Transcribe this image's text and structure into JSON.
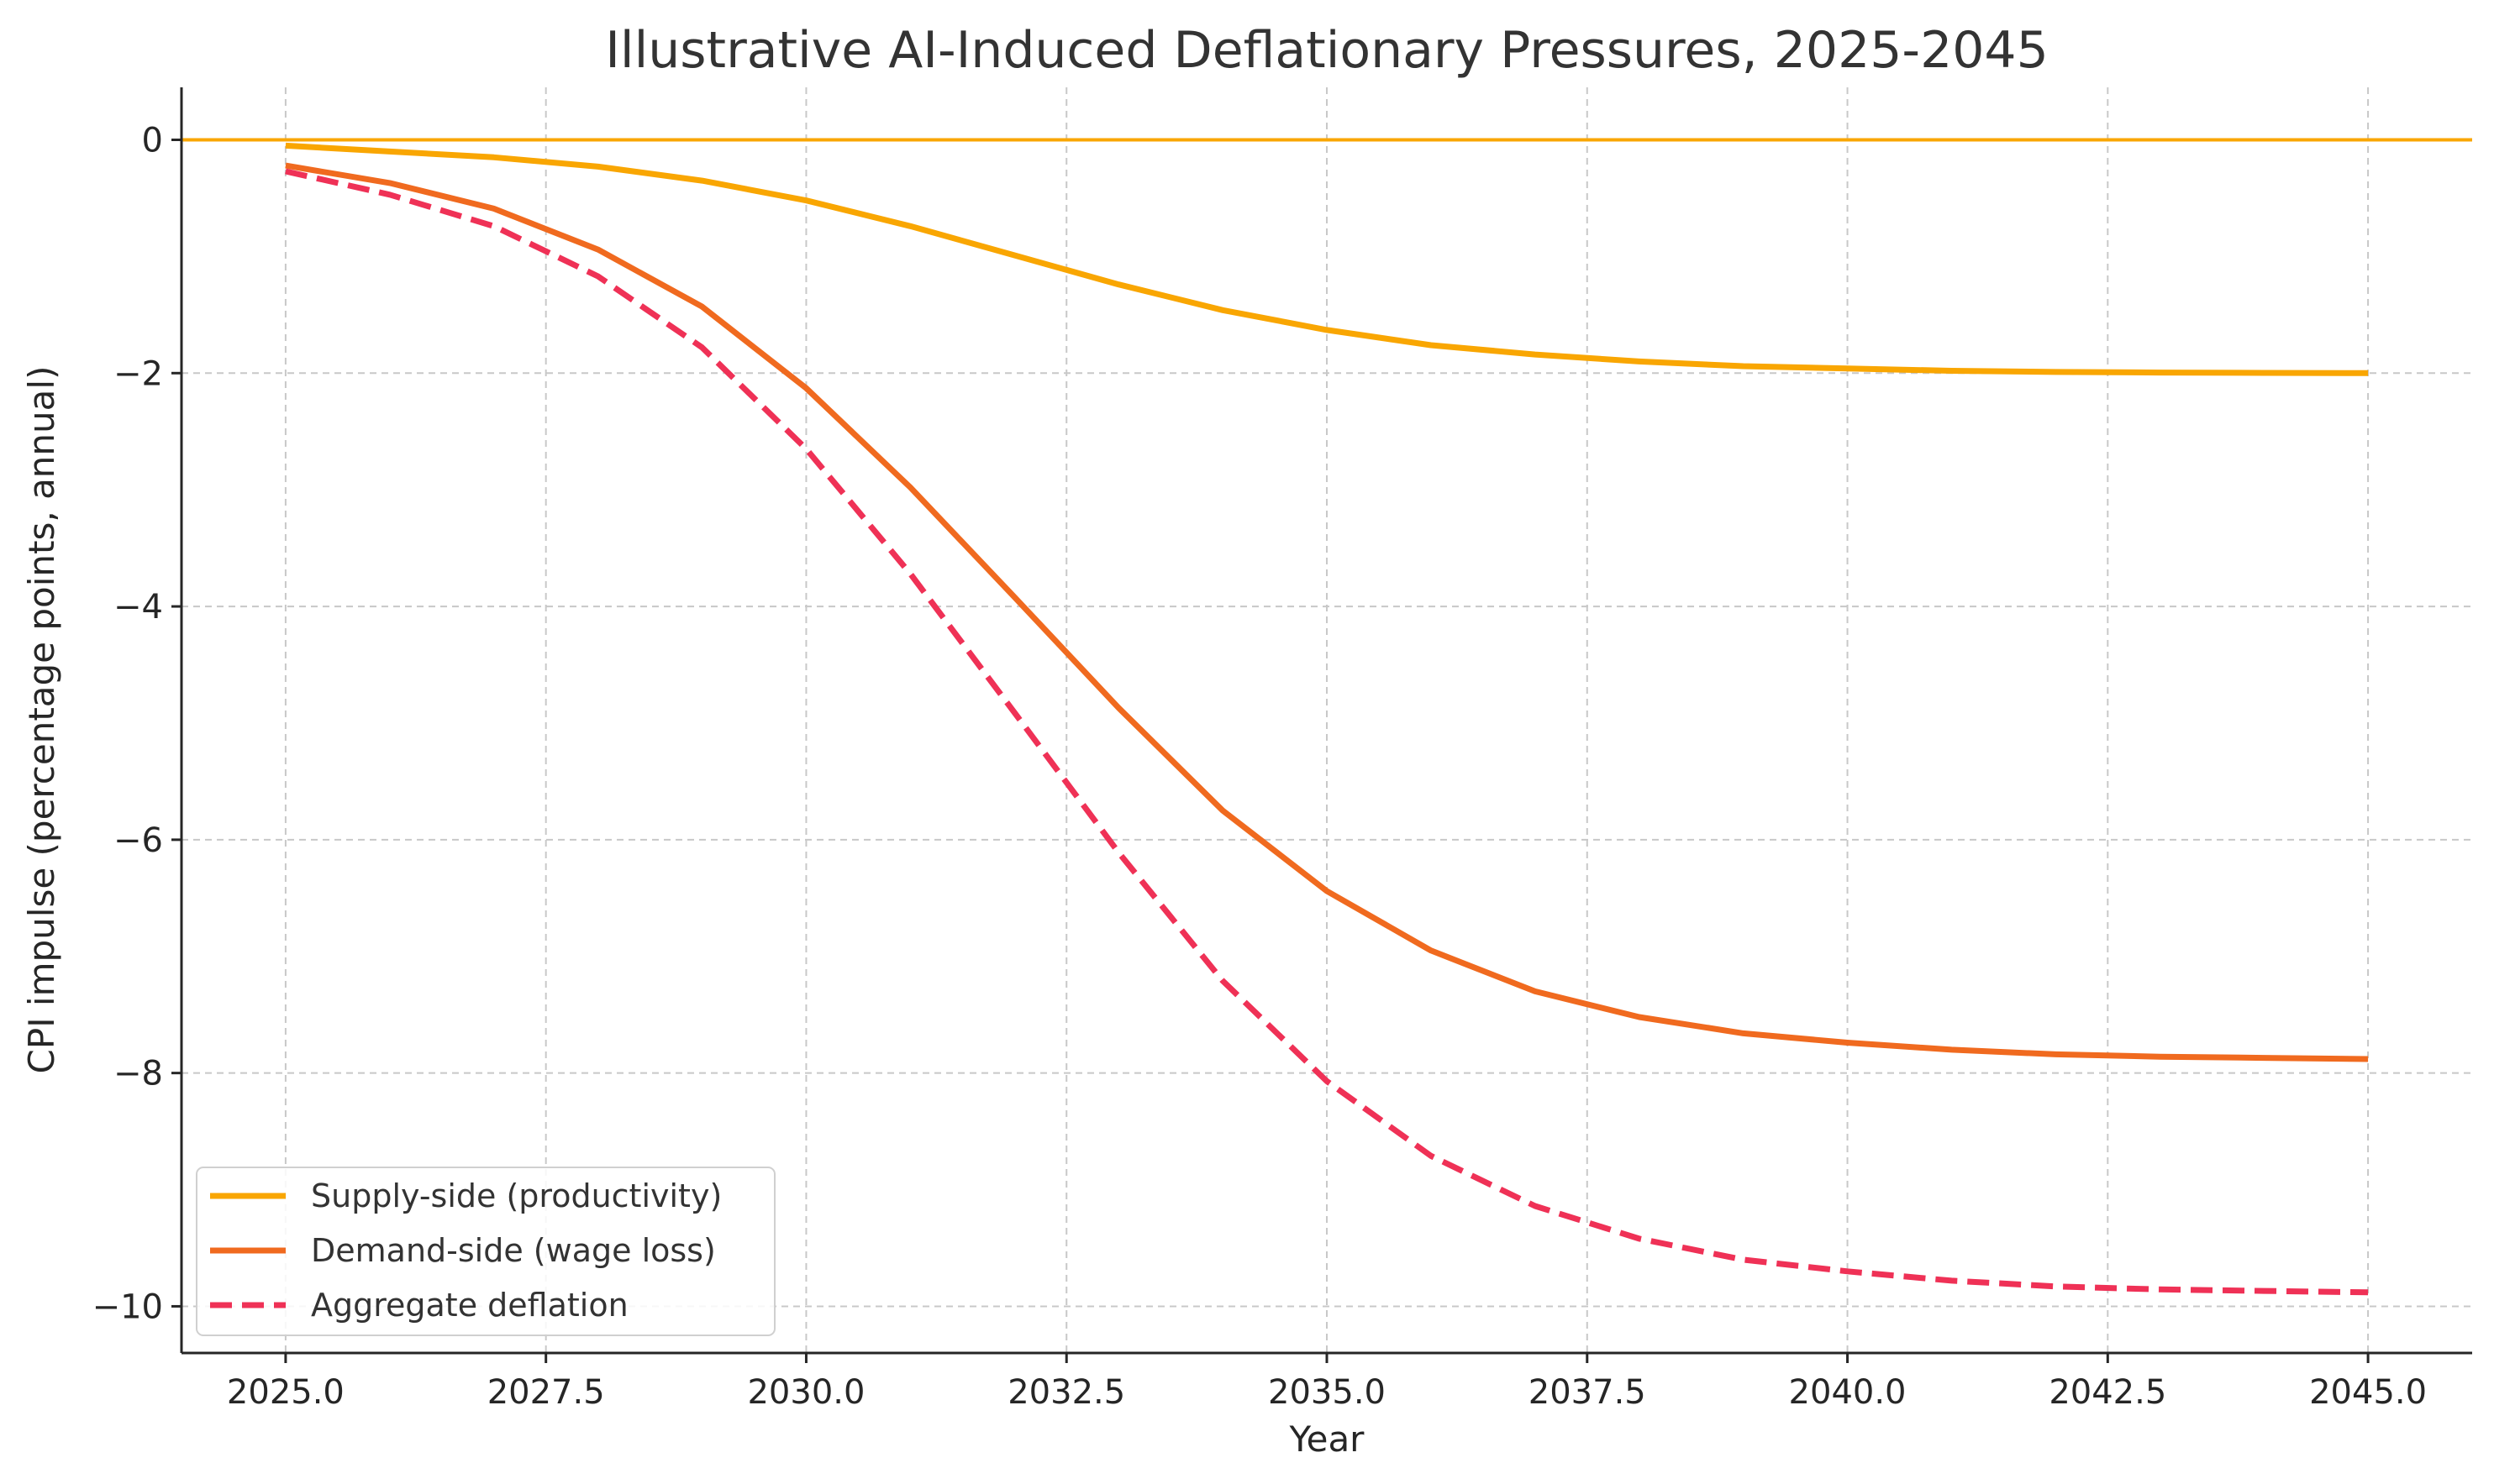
{
  "chart_data": {
    "type": "line",
    "title": "Illustrative AI-Induced Deflationary Pressures, 2025-2045",
    "xlabel": "Year",
    "ylabel": "CPI impulse (percentage points, annual)",
    "xlim": [
      2024,
      2046
    ],
    "ylim": [
      -10.4,
      0.45
    ],
    "x_ticks": [
      2025,
      2027.5,
      2030,
      2032.5,
      2035,
      2037.5,
      2040,
      2042.5,
      2045
    ],
    "x_tick_labels": [
      "2025.0",
      "2027.5",
      "2030.0",
      "2032.5",
      "2035.0",
      "2037.5",
      "2040.0",
      "2042.5",
      "2045.0"
    ],
    "y_ticks": [
      0,
      -2,
      -4,
      -6,
      -8,
      -10
    ],
    "y_tick_labels": [
      "0",
      "−2",
      "−4",
      "−6",
      "−8",
      "−10"
    ],
    "grid": true,
    "legend_position": "lower-left",
    "reference_line": {
      "y": 0,
      "color": "#F9A602"
    },
    "x": [
      2025,
      2026,
      2027,
      2028,
      2029,
      2030,
      2031,
      2032,
      2033,
      2034,
      2035,
      2036,
      2037,
      2038,
      2039,
      2040,
      2041,
      2042,
      2043,
      2044,
      2045
    ],
    "series": [
      {
        "name": "Supply-side (productivity)",
        "color": "#F9A602",
        "dash": "solid",
        "values": [
          -0.05,
          -0.1,
          -0.15,
          -0.23,
          -0.35,
          -0.52,
          -0.74,
          -0.99,
          -1.24,
          -1.46,
          -1.63,
          -1.76,
          -1.84,
          -1.9,
          -1.94,
          -1.96,
          -1.98,
          -1.99,
          -1.995,
          -1.998,
          -2.0
        ]
      },
      {
        "name": "Demand-side (wage loss)",
        "color": "#F06A1F",
        "dash": "solid",
        "values": [
          -0.22,
          -0.37,
          -0.59,
          -0.94,
          -1.43,
          -2.13,
          -2.98,
          -3.92,
          -4.87,
          -5.75,
          -6.44,
          -6.95,
          -7.3,
          -7.52,
          -7.66,
          -7.74,
          -7.8,
          -7.84,
          -7.86,
          -7.87,
          -7.88
        ]
      },
      {
        "name": "Aggregate deflation",
        "color": "#EF3156",
        "dash": "dashed",
        "values": [
          -0.27,
          -0.47,
          -0.74,
          -1.17,
          -1.78,
          -2.65,
          -3.72,
          -4.91,
          -6.11,
          -7.21,
          -8.07,
          -8.71,
          -9.14,
          -9.42,
          -9.6,
          -9.7,
          -9.78,
          -9.83,
          -9.855,
          -9.868,
          -9.88
        ]
      }
    ]
  }
}
